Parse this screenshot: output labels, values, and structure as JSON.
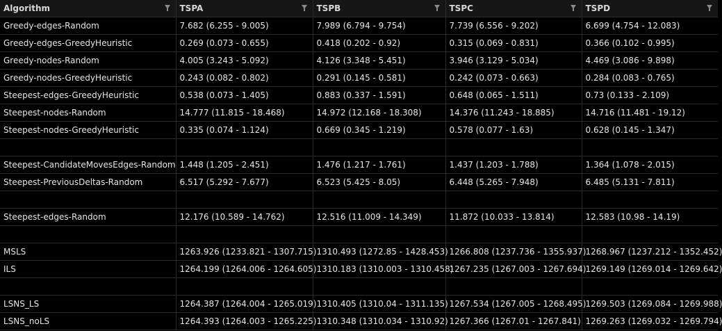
{
  "table": {
    "headers": [
      "Algorithm",
      "TSPA",
      "TSPB",
      "TSPC",
      "TSPD"
    ],
    "rows": [
      [
        "Greedy-edges-Random",
        "7.682 (6.255 - 9.005)",
        "7.989 (6.794 - 9.754)",
        "7.739 (6.556 - 9.202)",
        "6.699 (4.754 - 12.083)"
      ],
      [
        "Greedy-edges-GreedyHeuristic",
        "0.269 (0.073 - 0.655)",
        "0.418 (0.202 - 0.92)",
        "0.315 (0.069 - 0.831)",
        "0.366 (0.102 - 0.995)"
      ],
      [
        "Greedy-nodes-Random",
        "4.005 (3.243 - 5.092)",
        "4.126 (3.348 - 5.451)",
        "3.946 (3.129 - 5.034)",
        "4.469 (3.086 - 9.898)"
      ],
      [
        "Greedy-nodes-GreedyHeuristic",
        "0.243 (0.082 - 0.802)",
        "0.291 (0.145 - 0.581)",
        "0.242 (0.073 - 0.663)",
        "0.284 (0.083 - 0.765)"
      ],
      [
        "Steepest-edges-GreedyHeuristic",
        "0.538 (0.073 - 1.405)",
        "0.883 (0.337 - 1.591)",
        "0.648 (0.065 - 1.511)",
        "0.73 (0.133 - 2.109)"
      ],
      [
        "Steepest-nodes-Random",
        "14.777 (11.815 - 18.468)",
        "14.972 (12.168 - 18.308)",
        "14.376 (11.243 - 18.885)",
        "14.716 (11.481 - 19.12)"
      ],
      [
        "Steepest-nodes-GreedyHeuristic",
        "0.335 (0.074 - 1.124)",
        "0.669 (0.345 - 1.219)",
        "0.578 (0.077 - 1.63)",
        "0.628 (0.145 - 1.347)"
      ],
      [
        "",
        "",
        "",
        "",
        ""
      ],
      [
        "Steepest-CandidateMovesEdges-Random",
        "1.448 (1.205 - 2.451)",
        "1.476 (1.217 - 1.761)",
        "1.437 (1.203 - 1.788)",
        "1.364 (1.078 - 2.015)"
      ],
      [
        "Steepest-PreviousDeltas-Random",
        "6.517 (5.292 - 7.677)",
        "6.523 (5.425 - 8.05)",
        "6.448 (5.265 - 7.948)",
        "6.485 (5.131 - 7.811)"
      ],
      [
        "",
        "",
        "",
        "",
        ""
      ],
      [
        "Steepest-edges-Random",
        "12.176 (10.589 - 14.762)",
        "12.516 (11.009 - 14.349)",
        "11.872 (10.033 - 13.814)",
        "12.583 (10.98 - 14.19)"
      ],
      [
        "",
        "",
        "",
        "",
        ""
      ],
      [
        "MSLS",
        "1263.926 (1233.821 - 1307.715)",
        "1310.493 (1272.85 - 1428.453)",
        "1266.808 (1237.736 - 1355.937)",
        "1268.967 (1237.212 - 1352.452)"
      ],
      [
        "ILS",
        "1264.199 (1264.006 - 1264.605)",
        "1310.183 (1310.003 - 1310.458)",
        "1267.235 (1267.003 - 1267.694)",
        "1269.149 (1269.014 - 1269.642)"
      ],
      [
        "",
        "",
        "",
        "",
        ""
      ],
      [
        "LSNS_LS",
        "1264.387 (1264.004 - 1265.019)",
        "1310.405 (1310.04 - 1311.135)",
        "1267.534 (1267.005 - 1268.495)",
        "1269.503 (1269.084 - 1269.988)"
      ],
      [
        "LSNS_noLS",
        "1264.393 (1264.003 - 1265.225)",
        "1310.348 (1310.034 - 1310.92)",
        "1267.366 (1267.01 - 1267.841)",
        "1269.263 (1269.032 - 1269.794)"
      ]
    ]
  }
}
